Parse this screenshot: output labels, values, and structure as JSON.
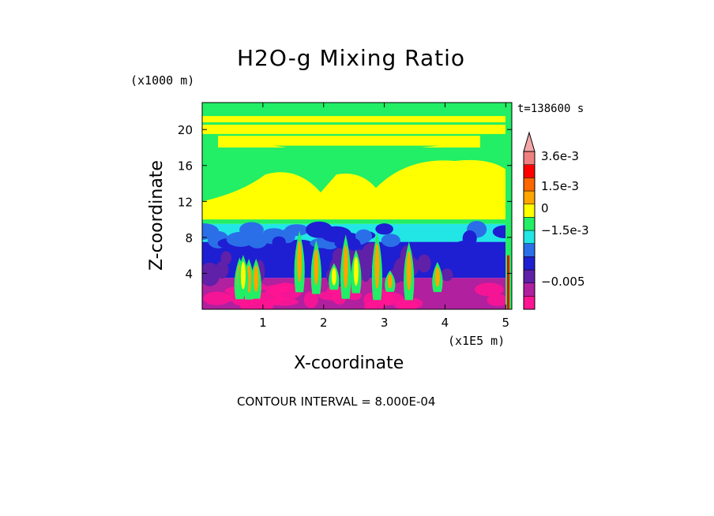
{
  "chart_data": {
    "type": "heatmap",
    "title": "H2O-g Mixing Ratio",
    "xlabel": "X-coordinate",
    "ylabel": "Z-coordinate",
    "x_unit": "(x1E5 m)",
    "y_unit": "(x1000 m)",
    "time_label": "t=138600 s",
    "footer": "CONTOUR INTERVAL = 8.000E-04",
    "xlim": [
      0,
      5.1
    ],
    "ylim": [
      0,
      23
    ],
    "x_ticks": [
      "1",
      "2",
      "3",
      "4",
      "5"
    ],
    "x_tick_values": [
      1,
      2,
      3,
      4,
      5
    ],
    "y_ticks": [
      "4",
      "8",
      "12",
      "16",
      "20"
    ],
    "y_tick_values": [
      4,
      8,
      12,
      16,
      20
    ],
    "colorbar": {
      "labels": [
        "3.6e-3",
        "1.5e-3",
        "0",
        "−1.5e-3",
        "−0.005"
      ],
      "colors": [
        "#ff1493",
        "#b0209f",
        "#6020a8",
        "#1e1ed2",
        "#2a6fe8",
        "#22e6e6",
        "#22ee66",
        "#ffff00",
        "#ffa500",
        "#ff6600",
        "#ff0000",
        "#f08080"
      ]
    },
    "layers": [
      {
        "name": "lower-band",
        "z_range": [
          0,
          3.5
        ],
        "color": "#b0209f"
      },
      {
        "name": "mid-band",
        "z_range": [
          3.5,
          7.5
        ],
        "color": "#1e1ed2"
      },
      {
        "name": "transition-band",
        "z_range": [
          7.5,
          9.5
        ],
        "color": "#22e6e6"
      },
      {
        "name": "upper-band",
        "z_range": [
          9.5,
          23
        ],
        "color": "#22ee66"
      }
    ]
  }
}
